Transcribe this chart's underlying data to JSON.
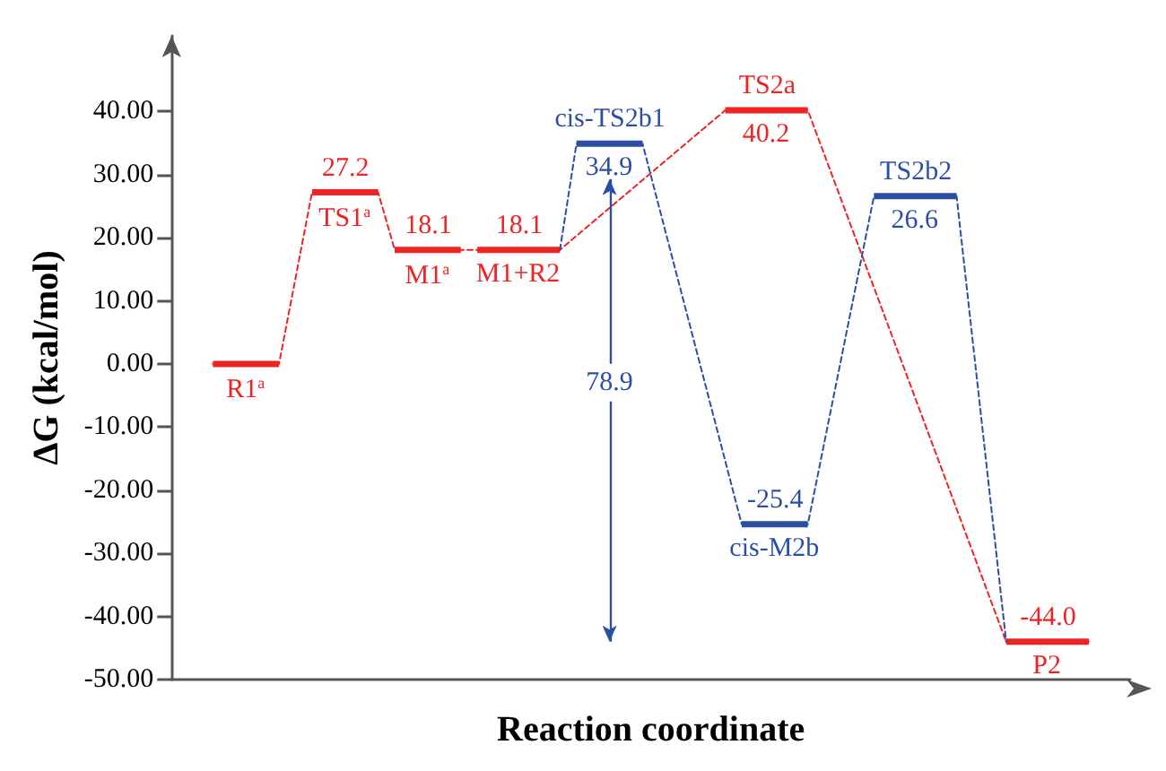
{
  "chart_data": {
    "type": "line",
    "xlabel": "Reaction coordinate",
    "ylabel": "ΔG (kcal/mol)",
    "categories": [
      null,
      null,
      null,
      null,
      null,
      null,
      null,
      null,
      null,
      null,
      null,
      null,
      null,
      null,
      null,
      null,
      null,
      null,
      null,
      null,
      null,
      null,
      null,
      null,
      null,
      null,
      null,
      null,
      null,
      null,
      null,
      null,
      null,
      null,
      null,
      null,
      null,
      null,
      null,
      null,
      null,
      null,
      null,
      null,
      null,
      null,
      null,
      null,
      null,
      null,
      null,
      null,
      null,
      null,
      null,
      null,
      null,
      null
    ],
    "ylim": [
      -50,
      52
    ],
    "yticks": [
      {
        "value": -50,
        "label": "-50.00"
      },
      {
        "value": -40,
        "label": "-40.00"
      },
      {
        "value": -30,
        "label": "-30.00"
      },
      {
        "value": -20,
        "label": "-20.00"
      },
      {
        "value": -10,
        "label": "-10.00"
      },
      {
        "value": 0,
        "label": "0.00"
      },
      {
        "value": 10,
        "label": "10.00"
      },
      {
        "value": 20,
        "label": "20.00"
      },
      {
        "value": 30,
        "label": "30.00"
      },
      {
        "value": 40,
        "label": "40.00"
      }
    ],
    "tick_labels": "y",
    "grid": false,
    "marker": "none",
    "line_style": "dashed",
    "series": [
      {
        "color": "#ee2424",
        "values": [
          null,
          null,
          0.0,
          null,
          null,
          null,
          0.0,
          null,
          27.2,
          null,
          null,
          null,
          27.2,
          18.1,
          null,
          null,
          null,
          18.1,
          18.1,
          null,
          null,
          null,
          null,
          18.1,
          null,
          null,
          null,
          null,
          null,
          null,
          null,
          null,
          null,
          40.2,
          null,
          null,
          null,
          null,
          40.2,
          null,
          null,
          null,
          null,
          null,
          null,
          null,
          null,
          null,
          null,
          null,
          -44.0,
          null,
          null,
          null,
          null,
          -44.0,
          null,
          null
        ],
        "value_labels": [
          null,
          null,
          null,
          null,
          null,
          null,
          "R1$^{a}$",
          null,
          "27.2",
          null,
          null,
          null,
          "TS1$^{a}$",
          "18.1",
          null,
          null,
          null,
          "M1$^{a}$",
          "18.1",
          null,
          null,
          null,
          null,
          "M1+R2",
          null,
          null,
          null,
          null,
          null,
          null,
          null,
          null,
          null,
          "TS2a",
          null,
          null,
          null,
          null,
          "40.2",
          null,
          null,
          null,
          null,
          null,
          null,
          null,
          null,
          null,
          null,
          null,
          "-44.0",
          null,
          null,
          null,
          null,
          "P2",
          null,
          null
        ]
      },
      {
        "color": "#2c4ea3",
        "values": [
          null,
          null,
          null,
          null,
          null,
          null,
          null,
          null,
          null,
          null,
          null,
          null,
          null,
          null,
          null,
          null,
          null,
          null,
          null,
          null,
          null,
          null,
          null,
          18.1,
          34.9,
          null,
          null,
          null,
          34.9,
          null,
          null,
          null,
          null,
          null,
          -25.4,
          null,
          null,
          null,
          -25.4,
          null,
          null,
          null,
          26.6,
          null,
          null,
          null,
          null,
          26.6,
          null,
          null,
          -44.0,
          null,
          null,
          null,
          null,
          null,
          null,
          null
        ],
        "value_labels": [
          null,
          null,
          null,
          null,
          null,
          null,
          null,
          null,
          null,
          null,
          null,
          null,
          null,
          null,
          null,
          null,
          null,
          null,
          null,
          null,
          null,
          null,
          null,
          null,
          "cis-TS2b1",
          null,
          null,
          null,
          "34.9",
          null,
          null,
          null,
          null,
          null,
          "-25.4",
          null,
          null,
          null,
          "cis-M2b",
          null,
          null,
          null,
          "TS2b2",
          null,
          null,
          null,
          null,
          "26.6",
          null,
          null,
          null,
          null,
          null,
          null,
          null,
          null,
          null,
          null
        ]
      }
    ],
    "annotations": [
      "78.9"
    ]
  }
}
